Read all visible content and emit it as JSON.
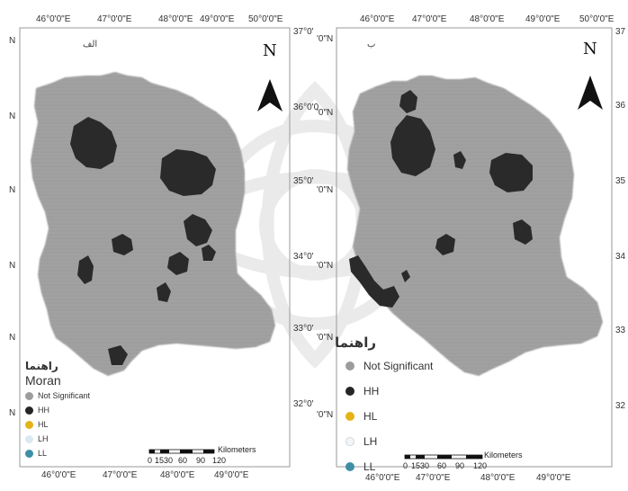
{
  "colors": {
    "not_significant": "#9c9c9c",
    "hh": "#262626",
    "hl": "#e6b317",
    "lh": "#d9eaf2",
    "ll": "#3f8fa6",
    "frame": "#9a9a9a"
  },
  "left_map": {
    "letter": "الف",
    "north_label": "N",
    "top_ticks": [
      "46°0'0\"E",
      "47°0'0\"E",
      "48°0'0\"E",
      "49°0'0\"E",
      "50°0'0\"E"
    ],
    "bottom_ticks": [
      "46°0'0\"E",
      "47°0'0\"E",
      "48°0'0\"E",
      "49°0'0\"E"
    ],
    "left_ticks": [
      "N",
      "N",
      "N",
      "N",
      "N",
      "N"
    ],
    "right_ticks": [
      "37°0'",
      "36°0'0",
      "35°0'",
      "34°0'",
      "33°0'",
      "32°0'"
    ],
    "legend": {
      "title_fa": "راهنما",
      "title": "Moran",
      "items": [
        {
          "label": "Not Significant",
          "color_key": "not_significant"
        },
        {
          "label": "HH",
          "color_key": "hh"
        },
        {
          "label": "HL",
          "color_key": "hl"
        },
        {
          "label": "LH",
          "color_key": "lh"
        },
        {
          "label": "LL",
          "color_key": "ll"
        }
      ]
    },
    "scalebar": {
      "unit": "Kilometers",
      "labels": [
        "0",
        "1530",
        "60",
        "90",
        "120"
      ]
    }
  },
  "right_map": {
    "letter": "ب",
    "north_label": "N",
    "top_ticks": [
      "46°0'0\"E",
      "47°0'0\"E",
      "48°0'0\"E",
      "49°0'0\"E",
      "50°0'0\"E"
    ],
    "bottom_ticks": [
      "46°0'0\"E",
      "47°0'0\"E",
      "48°0'0\"E",
      "49°0'0\"E"
    ],
    "left_ticks": [
      "'0\"N",
      "'0\"N",
      "'0\"N",
      "'0\"N",
      "'0\"N",
      "'0\"N"
    ],
    "right_ticks": [
      "37",
      "36",
      "35",
      "34",
      "33",
      "32"
    ],
    "legend": {
      "title_fa": "راهنما",
      "items": [
        {
          "label": "Not Significant",
          "color_key": "not_significant"
        },
        {
          "label": "HH",
          "color_key": "hh"
        },
        {
          "label": "HL",
          "color_key": "hl"
        },
        {
          "label": "LH",
          "color_key": "lh"
        },
        {
          "label": "LL",
          "color_key": "ll"
        }
      ]
    },
    "scalebar": {
      "unit": "Kilometers",
      "labels": [
        "0",
        "1530",
        "60",
        "90",
        "120"
      ]
    }
  }
}
